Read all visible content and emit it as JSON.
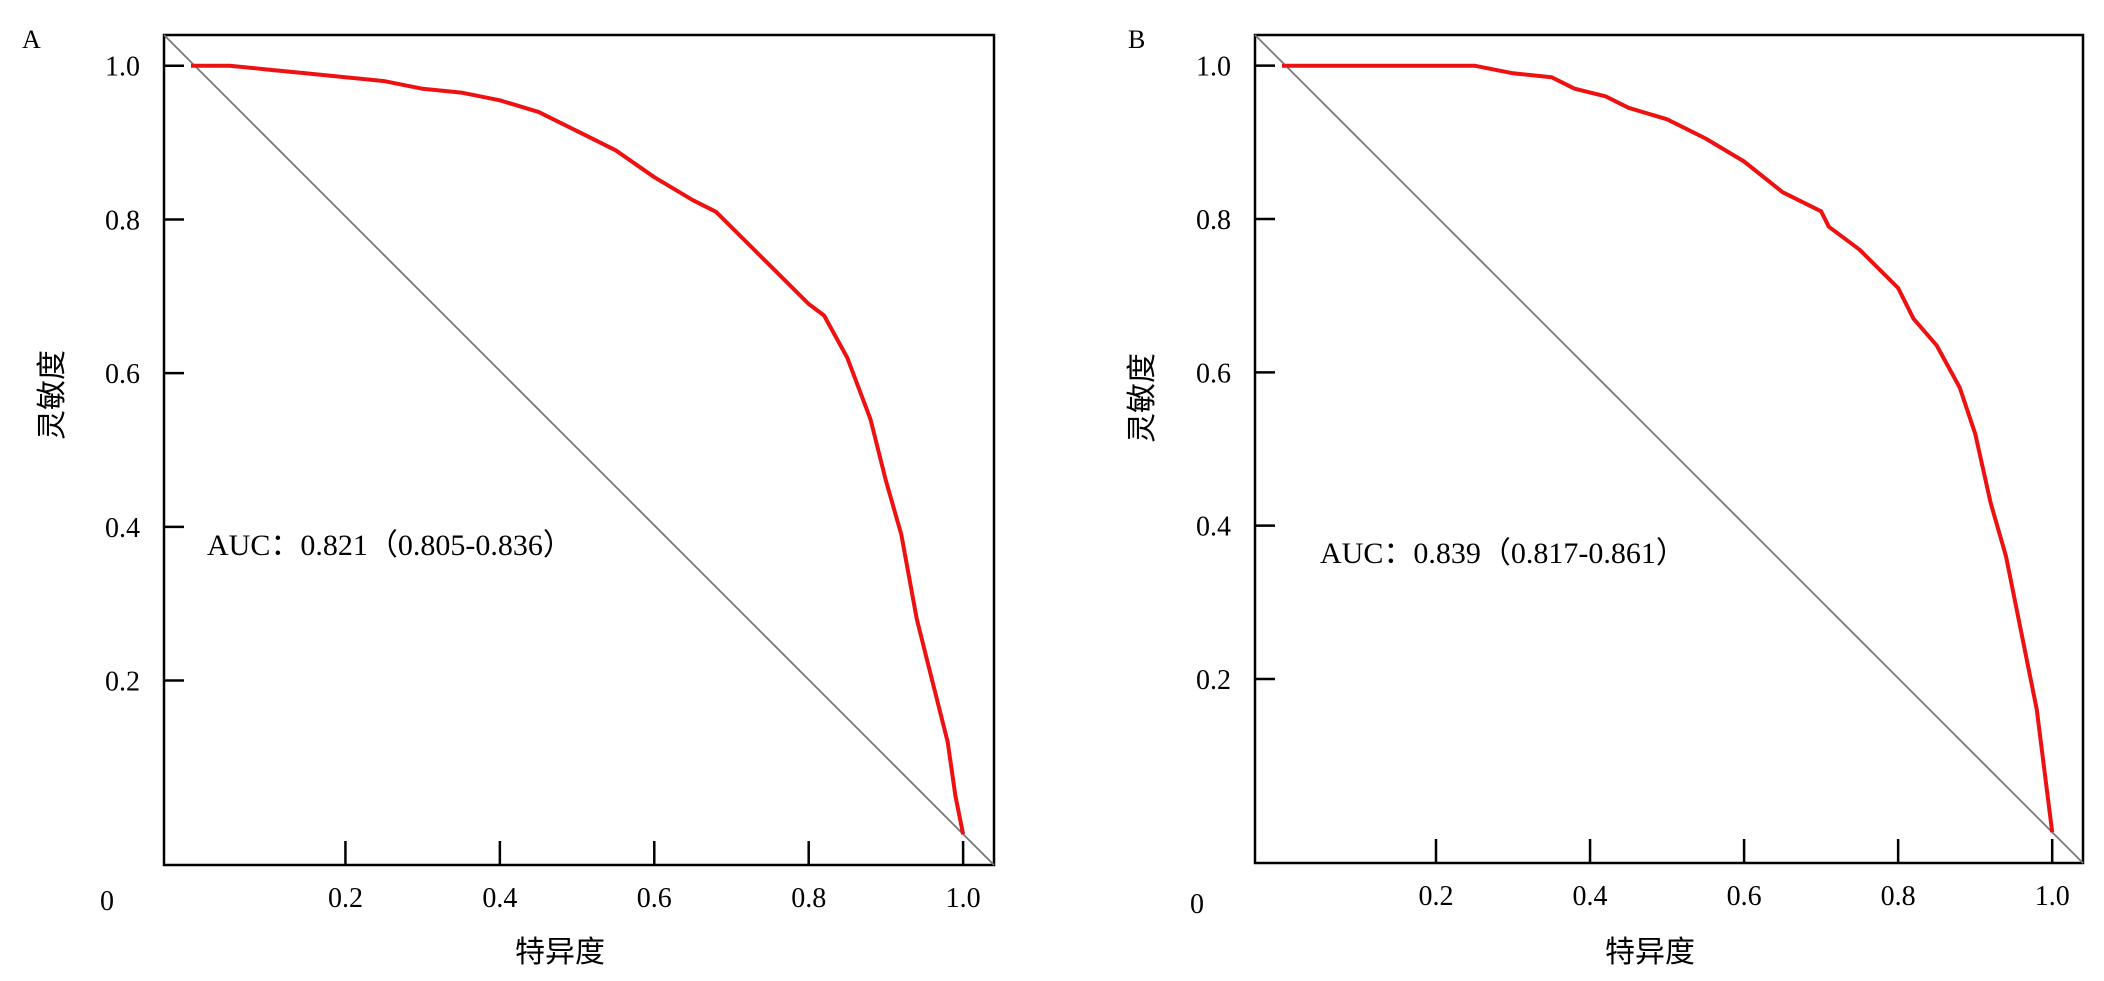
{
  "chart_data": [
    {
      "type": "line",
      "panel": "A",
      "xlabel": "特异度",
      "ylabel": "灵敏度",
      "x_ticks": [
        "0.2",
        "0.4",
        "0.6",
        "0.8",
        "1.0"
      ],
      "y_ticks": [
        "0.2",
        "0.4",
        "0.6",
        "0.8",
        "1.0"
      ],
      "origin_label": "0",
      "xlim": [
        -0.035,
        1.04
      ],
      "ylim": [
        -0.04,
        1.04
      ],
      "annotation": "AUC：0.821（0.805-0.836）",
      "line_color": "#ee1111",
      "reference_line": {
        "from": [
          -0.035,
          1.04
        ],
        "to": [
          1.04,
          -0.04
        ]
      },
      "series": [
        {
          "x": [
            0.0,
            0.05,
            0.1,
            0.15,
            0.2,
            0.25,
            0.3,
            0.35,
            0.4,
            0.45,
            0.5,
            0.55,
            0.6,
            0.65,
            0.68,
            0.72,
            0.75,
            0.8,
            0.82,
            0.85,
            0.88,
            0.9,
            0.92,
            0.94,
            0.96,
            0.98,
            0.99,
            1.0
          ],
          "y": [
            1.0,
            1.0,
            0.995,
            0.99,
            0.985,
            0.98,
            0.97,
            0.965,
            0.955,
            0.94,
            0.915,
            0.89,
            0.855,
            0.825,
            0.81,
            0.77,
            0.74,
            0.69,
            0.675,
            0.62,
            0.54,
            0.46,
            0.39,
            0.28,
            0.2,
            0.12,
            0.05,
            0.0
          ]
        }
      ]
    },
    {
      "type": "line",
      "panel": "B",
      "xlabel": "特异度",
      "ylabel": "灵敏度",
      "x_ticks": [
        "0.2",
        "0.4",
        "0.6",
        "0.8",
        "1.0"
      ],
      "y_ticks": [
        "0.2",
        "0.4",
        "0.6",
        "0.8",
        "1.0"
      ],
      "origin_label": "0",
      "xlim": [
        -0.035,
        1.04
      ],
      "ylim": [
        -0.04,
        1.04
      ],
      "annotation": "AUC：0.839（0.817-0.861）",
      "line_color": "#ee1111",
      "reference_line": {
        "from": [
          -0.035,
          1.04
        ],
        "to": [
          1.04,
          -0.04
        ]
      },
      "series": [
        {
          "x": [
            0.0,
            0.1,
            0.2,
            0.25,
            0.3,
            0.35,
            0.38,
            0.42,
            0.45,
            0.5,
            0.55,
            0.6,
            0.65,
            0.7,
            0.71,
            0.75,
            0.8,
            0.82,
            0.85,
            0.88,
            0.9,
            0.92,
            0.94,
            0.96,
            0.98,
            0.99,
            1.0
          ],
          "y": [
            1.0,
            1.0,
            1.0,
            1.0,
            0.99,
            0.985,
            0.97,
            0.96,
            0.945,
            0.93,
            0.905,
            0.875,
            0.835,
            0.81,
            0.79,
            0.76,
            0.71,
            0.67,
            0.635,
            0.58,
            0.52,
            0.43,
            0.36,
            0.26,
            0.16,
            0.08,
            0.0
          ]
        }
      ]
    }
  ]
}
